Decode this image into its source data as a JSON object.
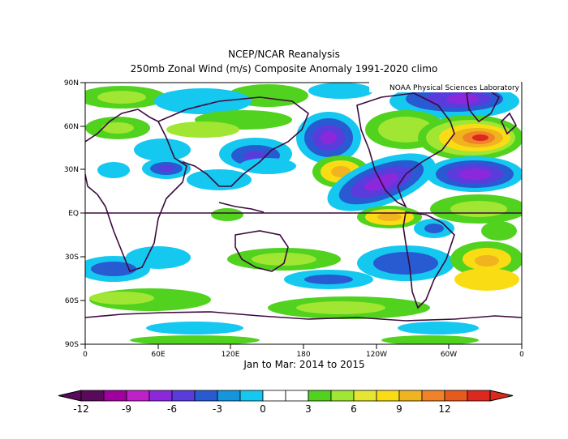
{
  "title_line1": "NCEP/NCAR Reanalysis",
  "title_line2": "250mb Zonal Wind (m/s) Composite Anomaly 1991-2020 climo",
  "credit": "NOAA Physical Sciences Laboratory",
  "date_range": "Jan to Mar: 2014 to 2015",
  "lat_ticks": [
    "90N",
    "60N",
    "30N",
    "EQ",
    "30S",
    "60S",
    "90S"
  ],
  "lon_ticks": [
    "0",
    "60E",
    "120E",
    "180",
    "120W",
    "60W",
    "0"
  ],
  "colorbar": {
    "labels": [
      "-12",
      "-9",
      "-6",
      "-3",
      "0",
      "3",
      "6",
      "9",
      "12"
    ],
    "colors": [
      "#5a0a5a",
      "#a000a0",
      "#c020c8",
      "#8c28dc",
      "#5a3cdc",
      "#285ad2",
      "#1496dc",
      "#14c8f0",
      "#ffffff",
      "#ffffff",
      "#50d21e",
      "#a0e632",
      "#e6e632",
      "#fadc14",
      "#f0b41e",
      "#f08228",
      "#e65a1e",
      "#dc281e"
    ]
  }
}
